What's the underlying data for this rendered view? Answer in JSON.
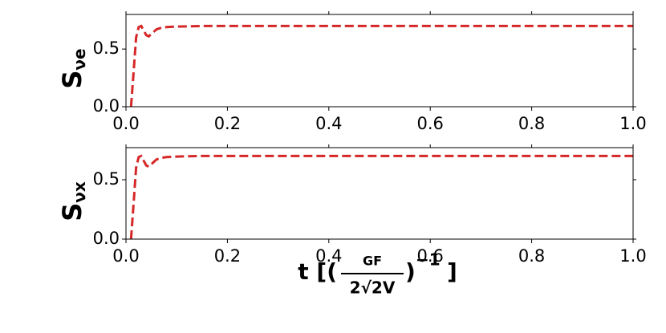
{
  "chart_data": [
    {
      "type": "line",
      "ylabel": {
        "base": "S",
        "sub": "νe"
      },
      "x": [
        0.01,
        0.015,
        0.02,
        0.025,
        0.03,
        0.035,
        0.04,
        0.045,
        0.05,
        0.06,
        0.07,
        0.08,
        0.1,
        0.15,
        0.2,
        0.3,
        0.4,
        0.5,
        0.6,
        0.7,
        0.8,
        0.9,
        1.0
      ],
      "series": [
        {
          "color": "#d62728",
          "values": [
            0,
            0.3,
            0.6,
            0.69,
            0.7,
            0.66,
            0.62,
            0.61,
            0.63,
            0.67,
            0.685,
            0.69,
            0.695,
            0.7,
            0.7,
            0.7,
            0.7,
            0.7,
            0.7,
            0.7,
            0.7,
            0.7,
            0.7
          ]
        }
      ],
      "xlim": [
        0,
        1
      ],
      "xticks": [
        {
          "value": 0,
          "label": "0.0"
        },
        0.2,
        0.4,
        0.6,
        0.8,
        {
          "value": 1,
          "label": "1.0"
        }
      ],
      "ylim": [
        0,
        0.8
      ],
      "yticks": [
        {
          "value": 0,
          "label": "0.0"
        },
        0.5
      ]
    },
    {
      "type": "line",
      "ylabel": {
        "base": "S",
        "sub": "νx"
      },
      "xlabel": {
        "prefix": "t [(",
        "numerator": "GF",
        "denominator": "2√2V",
        "suffix": ")",
        "exponent": "−1",
        "close": "]"
      },
      "x": [
        0.01,
        0.015,
        0.02,
        0.025,
        0.03,
        0.035,
        0.04,
        0.045,
        0.05,
        0.06,
        0.07,
        0.08,
        0.1,
        0.15,
        0.2,
        0.3,
        0.4,
        0.5,
        0.6,
        0.7,
        0.8,
        0.9,
        1.0
      ],
      "series": [
        {
          "color": "#d62728",
          "values": [
            0,
            0.3,
            0.6,
            0.69,
            0.7,
            0.66,
            0.62,
            0.61,
            0.63,
            0.67,
            0.685,
            0.69,
            0.695,
            0.7,
            0.7,
            0.7,
            0.7,
            0.7,
            0.7,
            0.7,
            0.7,
            0.7,
            0.7
          ]
        }
      ],
      "xlim": [
        0,
        1
      ],
      "xticks": [
        {
          "value": 0,
          "label": "0.0"
        },
        0.2,
        0.4,
        0.6,
        0.8,
        {
          "value": 1,
          "label": "1.0"
        }
      ],
      "ylim": [
        0,
        0.77
      ],
      "yticks": [
        {
          "value": 0,
          "label": "0.0"
        },
        0.5
      ]
    }
  ]
}
